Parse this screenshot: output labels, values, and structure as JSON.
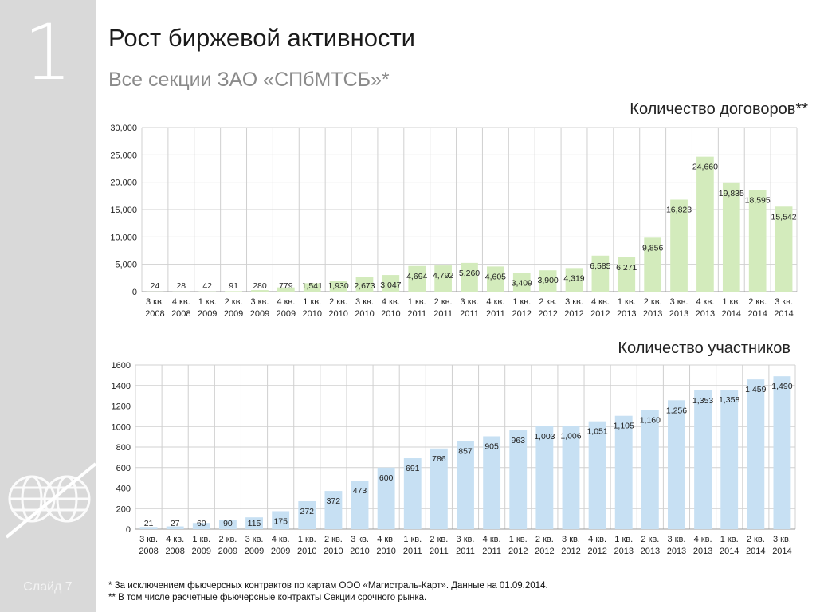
{
  "slide": {
    "number": "1",
    "label": "Слайд 7"
  },
  "title": "Рост биржевой активности",
  "subtitle": "Все секции ЗАО «СПбМТСБ»*",
  "colors": {
    "bar1": "#d3ebbc",
    "bar2": "#c7e0f3",
    "grid": "#d0d0d0",
    "sidebar": "#d9d9d9"
  },
  "chart_data": [
    {
      "type": "bar",
      "title": "Количество договоров**",
      "categories": [
        [
          "3 кв.",
          "2008"
        ],
        [
          "4 кв.",
          "2008"
        ],
        [
          "1 кв.",
          "2009"
        ],
        [
          "2 кв.",
          "2009"
        ],
        [
          "3 кв.",
          "2009"
        ],
        [
          "4 кв.",
          "2009"
        ],
        [
          "1 кв.",
          "2010"
        ],
        [
          "2 кв.",
          "2010"
        ],
        [
          "3 кв.",
          "2010"
        ],
        [
          "4 кв.",
          "2010"
        ],
        [
          "1 кв.",
          "2011"
        ],
        [
          "2 кв.",
          "2011"
        ],
        [
          "3 кв.",
          "2011"
        ],
        [
          "4 кв.",
          "2011"
        ],
        [
          "1 кв.",
          "2012"
        ],
        [
          "2 кв.",
          "2012"
        ],
        [
          "3 кв.",
          "2012"
        ],
        [
          "4 кв.",
          "2012"
        ],
        [
          "1 кв.",
          "2013"
        ],
        [
          "2 кв.",
          "2013"
        ],
        [
          "3 кв.",
          "2013"
        ],
        [
          "4 кв.",
          "2013"
        ],
        [
          "1 кв.",
          "2014"
        ],
        [
          "2 кв.",
          "2014"
        ],
        [
          "3 кв.",
          "2014"
        ]
      ],
      "values": [
        24,
        28,
        42,
        91,
        280,
        779,
        1541,
        1930,
        2673,
        3047,
        4694,
        4792,
        5260,
        4605,
        3409,
        3900,
        4319,
        6585,
        6271,
        9856,
        16823,
        24660,
        19835,
        18595,
        15542
      ],
      "value_labels": [
        "24",
        "28",
        "42",
        "91",
        "280",
        "779",
        "1,541",
        "1,930",
        "2,673",
        "3,047",
        "4,694",
        "4,792",
        "5,260",
        "4,605",
        "3,409",
        "3,900",
        "4,319",
        "6,585",
        "6,271",
        "9,856",
        "16,823",
        "24,660",
        "19,835",
        "18,595",
        "15,542"
      ],
      "ylim": [
        0,
        30000
      ],
      "yticks": [
        "0",
        "5,000",
        "10,000",
        "15,000",
        "20,000",
        "25,000",
        "30,000"
      ],
      "grid": true
    },
    {
      "type": "bar",
      "title": "Количество участников",
      "categories": [
        [
          "3 кв.",
          "2008"
        ],
        [
          "4 кв.",
          "2008"
        ],
        [
          "1 кв.",
          "2009"
        ],
        [
          "2 кв.",
          "2009"
        ],
        [
          "3 кв.",
          "2009"
        ],
        [
          "4 кв.",
          "2009"
        ],
        [
          "1 кв.",
          "2010"
        ],
        [
          "2 кв.",
          "2010"
        ],
        [
          "3 кв.",
          "2010"
        ],
        [
          "4 кв.",
          "2010"
        ],
        [
          "1 кв.",
          "2011"
        ],
        [
          "2 кв.",
          "2011"
        ],
        [
          "3 кв.",
          "2011"
        ],
        [
          "4 кв.",
          "2011"
        ],
        [
          "1 кв.",
          "2012"
        ],
        [
          "2 кв.",
          "2012"
        ],
        [
          "3 кв.",
          "2012"
        ],
        [
          "4 кв.",
          "2012"
        ],
        [
          "1 кв.",
          "2013"
        ],
        [
          "2 кв.",
          "2013"
        ],
        [
          "3 кв.",
          "2013"
        ],
        [
          "4 кв.",
          "2013"
        ],
        [
          "1 кв.",
          "2014"
        ],
        [
          "2 кв.",
          "2014"
        ],
        [
          "3 кв.",
          "2014"
        ]
      ],
      "values": [
        21,
        27,
        60,
        90,
        115,
        175,
        272,
        372,
        473,
        600,
        691,
        786,
        857,
        905,
        963,
        1003,
        1006,
        1051,
        1105,
        1160,
        1256,
        1353,
        1358,
        1459,
        1490
      ],
      "value_labels": [
        "21",
        "27",
        "60",
        "90",
        "115",
        "175",
        "272",
        "372",
        "473",
        "600",
        "691",
        "786",
        "857",
        "905",
        "963",
        "1,003",
        "1,006",
        "1,051",
        "1,105",
        "1,160",
        "1,256",
        "1,353",
        "1,358",
        "1,459",
        "1,490"
      ],
      "ylim": [
        0,
        1600
      ],
      "yticks": [
        "0",
        "200",
        "400",
        "600",
        "800",
        "1000",
        "1200",
        "1400",
        "1600"
      ],
      "grid": true
    }
  ],
  "footnotes": [
    "* За исключением фьючерсных контрактов по картам ООО «Магистраль-Карт».  Данные на 01.09.2014.",
    "** В том числе расчетные фьючерсные контракты Секции срочного рынка."
  ]
}
